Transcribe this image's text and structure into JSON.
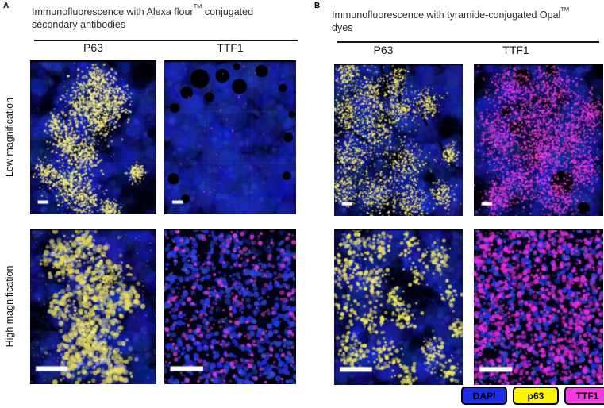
{
  "panels": {
    "A": {
      "label": "A",
      "title": {
        "pre": "Immunofluorescence with Alexa flour",
        "tm": "TM",
        "post": " conjugated",
        "line2": "secondary antibodies"
      },
      "columns": [
        "P63",
        "TTF1"
      ]
    },
    "B": {
      "label": "B",
      "title": {
        "pre": "Immunofluorescence with tyramide-conjugated Opal",
        "tm": "TM",
        "post": "",
        "line2": "dyes"
      },
      "columns": [
        "P63",
        "TTF1"
      ]
    }
  },
  "row_labels": [
    "Low magnification",
    "High magnification"
  ],
  "legend": {
    "items": [
      {
        "label": "DAPI",
        "color": "#1b2de8"
      },
      {
        "label": "p63",
        "color": "#fdf502"
      },
      {
        "label": "TTF1",
        "color": "#f63ae3"
      }
    ]
  },
  "stain_colors": {
    "dapi": "#1b2de8",
    "p63": "#fdf502",
    "ttf1": "#f63ae3"
  },
  "micrographs": {
    "a_low_p63": {
      "panel": "A",
      "magnification": "Low magnification",
      "marker": "P63",
      "bg": "mottle",
      "blueCount": 520,
      "darkPatches": [
        [
          0.9,
          0.08,
          0.14
        ],
        [
          0.86,
          0.9,
          0.2
        ],
        [
          0.6,
          0.47,
          0.1
        ],
        [
          0.12,
          0.3,
          0.07
        ],
        [
          0.98,
          0.45,
          0.08
        ]
      ],
      "layers": [
        {
          "color": "#f2ea7e",
          "count": 2400,
          "size": 1.4,
          "alpha": 0.95,
          "clusters": [
            [
              0.52,
              0.17,
              0.12
            ],
            [
              0.66,
              0.27,
              0.11
            ],
            [
              0.4,
              0.3,
              0.11
            ],
            [
              0.55,
              0.38,
              0.1
            ],
            [
              0.3,
              0.53,
              0.09
            ],
            [
              0.44,
              0.63,
              0.09
            ],
            [
              0.28,
              0.78,
              0.11
            ],
            [
              0.42,
              0.9,
              0.11
            ],
            [
              0.12,
              0.73,
              0.06
            ],
            [
              0.84,
              0.73,
              0.05
            ],
            [
              0.63,
              0.96,
              0.06
            ],
            [
              0.2,
              0.42,
              0.06
            ]
          ]
        },
        {
          "color": "#ffffff",
          "count": 240,
          "size": 1.0,
          "alpha": 0.5,
          "clusters": [
            [
              0.5,
              0.2,
              0.15
            ],
            [
              0.35,
              0.6,
              0.15
            ],
            [
              0.3,
              0.85,
              0.12
            ]
          ]
        }
      ],
      "grid": 3,
      "scalebar": {
        "x": 0.06,
        "y": 0.91,
        "len": 0.082,
        "th": 4
      }
    },
    "a_low_ttf1": {
      "panel": "A",
      "magnification": "Low magnification",
      "marker": "TTF1",
      "bg": "mottle",
      "blueCount": 680,
      "holes": [
        [
          0.27,
          0.12,
          0.075
        ],
        [
          0.44,
          0.1,
          0.055
        ],
        [
          0.57,
          0.17,
          0.06
        ],
        [
          0.17,
          0.21,
          0.05
        ],
        [
          0.34,
          0.24,
          0.04
        ],
        [
          0.08,
          0.31,
          0.04
        ],
        [
          0.74,
          0.07,
          0.05
        ],
        [
          0.9,
          0.18,
          0.035
        ],
        [
          0.94,
          0.5,
          0.04
        ],
        [
          0.07,
          0.77,
          0.045
        ],
        [
          0.16,
          0.9,
          0.035
        ],
        [
          0.93,
          0.75,
          0.035
        ],
        [
          0.55,
          0.04,
          0.03
        ],
        [
          0.97,
          0.35,
          0.03
        ]
      ],
      "layers": [
        {
          "color": "#f23ae2",
          "count": 28,
          "size": 1.1,
          "alpha": 0.8,
          "clusters": [
            [
              0.5,
              0.25,
              0.3
            ],
            [
              0.4,
              0.8,
              0.25
            ]
          ]
        }
      ],
      "grid": 3,
      "scalebar": {
        "x": 0.06,
        "y": 0.91,
        "len": 0.082,
        "th": 4
      }
    },
    "a_high_p63": {
      "panel": "A",
      "magnification": "High magnification",
      "marker": "P63",
      "bg": "mottle",
      "blueCount": 430,
      "darkPatches": [
        [
          0.04,
          0.6,
          0.1
        ],
        [
          0.62,
          0.35,
          0.07
        ],
        [
          0.1,
          0.1,
          0.06
        ]
      ],
      "layers": [
        {
          "color": "#cdd2f0",
          "count": 300,
          "size": 3.0,
          "alpha": 0.55,
          "clusters": [
            [
              0.42,
              0.15,
              0.14
            ],
            [
              0.22,
              0.2,
              0.1
            ],
            [
              0.62,
              0.3,
              0.12
            ],
            [
              0.45,
              0.4,
              0.12
            ],
            [
              0.6,
              0.55,
              0.13
            ],
            [
              0.42,
              0.65,
              0.12
            ],
            [
              0.55,
              0.8,
              0.14
            ],
            [
              0.33,
              0.85,
              0.1
            ],
            [
              0.68,
              0.93,
              0.09
            ],
            [
              0.78,
              0.45,
              0.07
            ],
            [
              0.25,
              0.5,
              0.07
            ]
          ]
        },
        {
          "color": "#e9dd55",
          "count": 680,
          "size": 3.0,
          "alpha": 0.8,
          "clusters": [
            [
              0.42,
              0.15,
              0.14
            ],
            [
              0.22,
              0.2,
              0.1
            ],
            [
              0.62,
              0.3,
              0.12
            ],
            [
              0.45,
              0.4,
              0.12
            ],
            [
              0.6,
              0.55,
              0.13
            ],
            [
              0.42,
              0.65,
              0.12
            ],
            [
              0.55,
              0.8,
              0.14
            ],
            [
              0.33,
              0.85,
              0.1
            ],
            [
              0.68,
              0.93,
              0.09
            ],
            [
              0.78,
              0.45,
              0.07
            ],
            [
              0.25,
              0.5,
              0.07
            ]
          ]
        },
        {
          "color": "#fff8a0",
          "count": 260,
          "size": 1.6,
          "alpha": 0.7,
          "clusters": [
            [
              0.42,
              0.15,
              0.14
            ],
            [
              0.62,
              0.3,
              0.12
            ],
            [
              0.45,
              0.4,
              0.12
            ],
            [
              0.55,
              0.8,
              0.14
            ],
            [
              0.42,
              0.65,
              0.12
            ]
          ]
        },
        {
          "color": "#f2ea7e",
          "count": 180,
          "size": 0.9,
          "alpha": 0.45,
          "clusters": null
        }
      ],
      "grid": 3,
      "scalebar": {
        "x": 0.045,
        "y": 0.885,
        "len": 0.25,
        "th": 6
      }
    },
    "a_high_ttf1": {
      "panel": "A",
      "magnification": "High magnification",
      "marker": "TTF1",
      "bg": "nuclei",
      "blueCount": 760,
      "darkPatches": [
        [
          0.75,
          0.05,
          0.12
        ],
        [
          0.45,
          0.55,
          0.08
        ]
      ],
      "layers": [
        {
          "color": "#ee3fe0",
          "count": 240,
          "size": 2.6,
          "alpha": 0.85,
          "clusters": null
        },
        {
          "color": "#ff7df0",
          "count": 120,
          "size": 1.2,
          "alpha": 0.6,
          "clusters": null
        }
      ],
      "grid": 3,
      "scalebar": {
        "x": 0.045,
        "y": 0.885,
        "len": 0.25,
        "th": 6
      }
    },
    "b_low_p63": {
      "panel": "B",
      "magnification": "Low magnification",
      "marker": "P63",
      "bg": "mottle",
      "blueCount": 520,
      "darkPatches": [
        [
          0.5,
          0.04,
          0.07
        ],
        [
          0.92,
          0.42,
          0.1
        ],
        [
          0.42,
          0.96,
          0.09
        ],
        [
          0.75,
          0.75,
          0.06
        ],
        [
          0.03,
          0.45,
          0.05
        ]
      ],
      "crevices": [
        [
          0.36,
          0.0,
          0.42,
          0.22,
          4
        ],
        [
          0.55,
          0.02,
          0.5,
          0.28,
          3
        ],
        [
          0.63,
          0.25,
          0.72,
          0.4,
          3
        ],
        [
          0.1,
          0.42,
          0.26,
          0.52,
          4
        ],
        [
          0.82,
          0.52,
          0.92,
          0.68,
          3
        ]
      ],
      "layers": [
        {
          "color": "#f6ef68",
          "count": 2800,
          "size": 1.2,
          "alpha": 0.95,
          "clusters": [
            [
              0.1,
              0.07,
              0.08
            ],
            [
              0.28,
              0.2,
              0.11
            ],
            [
              0.1,
              0.33,
              0.09
            ],
            [
              0.33,
              0.44,
              0.13
            ],
            [
              0.14,
              0.6,
              0.11
            ],
            [
              0.08,
              0.83,
              0.09
            ],
            [
              0.33,
              0.86,
              0.12
            ],
            [
              0.55,
              0.66,
              0.12
            ],
            [
              0.6,
              0.92,
              0.1
            ],
            [
              0.72,
              0.27,
              0.08
            ],
            [
              0.52,
              0.3,
              0.08
            ],
            [
              0.85,
              0.86,
              0.07
            ],
            [
              0.9,
              0.6,
              0.05
            ],
            [
              0.48,
              0.13,
              0.07
            ]
          ]
        },
        {
          "color": "#ffffff",
          "count": 200,
          "size": 0.9,
          "alpha": 0.5,
          "clusters": [
            [
              0.3,
              0.3,
              0.2
            ],
            [
              0.3,
              0.75,
              0.2
            ]
          ]
        }
      ],
      "scalebar": {
        "x": 0.06,
        "y": 0.91,
        "len": 0.082,
        "th": 4
      }
    },
    "b_low_ttf1": {
      "panel": "B",
      "magnification": "Low magnification",
      "marker": "TTF1",
      "bg": "mottle",
      "blueCount": 400,
      "darkPatches": [
        [
          0.0,
          0.9,
          0.14
        ],
        [
          0.02,
          0.1,
          0.09
        ],
        [
          0.98,
          0.05,
          0.07
        ]
      ],
      "holes": [
        [
          0.38,
          0.09,
          0.07
        ],
        [
          0.6,
          0.05,
          0.05
        ],
        [
          0.33,
          0.42,
          0.06
        ],
        [
          0.47,
          0.62,
          0.05
        ],
        [
          0.68,
          0.78,
          0.09
        ],
        [
          0.25,
          0.32,
          0.04
        ],
        [
          0.56,
          0.27,
          0.04
        ],
        [
          0.85,
          0.95,
          0.05
        ]
      ],
      "layers": [
        {
          "color": "#f03ae0",
          "count": 3600,
          "size": 1.3,
          "alpha": 0.9,
          "clusters": [
            [
              0.3,
              0.18,
              0.16
            ],
            [
              0.62,
              0.18,
              0.14
            ],
            [
              0.2,
              0.48,
              0.14
            ],
            [
              0.5,
              0.4,
              0.16
            ],
            [
              0.76,
              0.48,
              0.13
            ],
            [
              0.35,
              0.75,
              0.16
            ],
            [
              0.65,
              0.87,
              0.13
            ],
            [
              0.9,
              0.32,
              0.09
            ],
            [
              0.18,
              0.88,
              0.09
            ],
            [
              0.55,
              0.6,
              0.12
            ],
            [
              0.85,
              0.7,
              0.1
            ]
          ]
        },
        {
          "color": "#ff9bf2",
          "count": 300,
          "size": 0.9,
          "alpha": 0.5,
          "clusters": [
            [
              0.5,
              0.5,
              0.35
            ]
          ]
        }
      ],
      "scalebar": {
        "x": 0.06,
        "y": 0.91,
        "len": 0.082,
        "th": 4
      }
    },
    "b_high_p63": {
      "panel": "B",
      "magnification": "High magnification",
      "marker": "P63",
      "bg": "mottle",
      "blueCount": 520,
      "darkPatches": [
        [
          0.5,
          0.33,
          0.09
        ],
        [
          0.62,
          0.42,
          0.12
        ],
        [
          0.42,
          0.3,
          0.06
        ],
        [
          0.68,
          0.7,
          0.09
        ],
        [
          0.75,
          0.42,
          0.07
        ]
      ],
      "layers": [
        {
          "color": "#f2eb60",
          "count": 820,
          "size": 2.3,
          "alpha": 0.9,
          "clusters": [
            [
              0.15,
              0.08,
              0.1
            ],
            [
              0.35,
              0.1,
              0.09
            ],
            [
              0.1,
              0.28,
              0.09
            ],
            [
              0.3,
              0.33,
              0.09
            ],
            [
              0.1,
              0.52,
              0.09
            ],
            [
              0.3,
              0.58,
              0.09
            ],
            [
              0.14,
              0.78,
              0.09
            ],
            [
              0.38,
              0.8,
              0.09
            ],
            [
              0.56,
              0.55,
              0.07
            ],
            [
              0.6,
              0.12,
              0.08
            ],
            [
              0.8,
              0.18,
              0.08
            ],
            [
              0.9,
              0.42,
              0.06
            ],
            [
              0.77,
              0.8,
              0.09
            ],
            [
              0.55,
              0.92,
              0.08
            ],
            [
              0.9,
              0.9,
              0.06
            ],
            [
              0.47,
              0.45,
              0.05
            ],
            [
              0.95,
              0.65,
              0.05
            ],
            [
              0.65,
              0.3,
              0.06
            ]
          ]
        },
        {
          "color": "#c9cfe8",
          "count": 200,
          "size": 2.0,
          "alpha": 0.4,
          "clusters": [
            [
              0.15,
              0.08,
              0.1
            ],
            [
              0.3,
              0.33,
              0.09
            ],
            [
              0.14,
              0.78,
              0.09
            ],
            [
              0.77,
              0.8,
              0.09
            ],
            [
              0.8,
              0.18,
              0.08
            ]
          ]
        }
      ],
      "scalebar": {
        "x": 0.045,
        "y": 0.885,
        "len": 0.25,
        "th": 6
      }
    },
    "b_high_ttf1": {
      "panel": "B",
      "magnification": "High magnification",
      "marker": "TTF1",
      "bg": "nuclei",
      "blueCount": 620,
      "darkPatches": [
        [
          0.1,
          0.02,
          0.05
        ]
      ],
      "layers": [
        {
          "color": "#f02ce2",
          "count": 880,
          "size": 2.7,
          "alpha": 0.9,
          "clusters": null
        },
        {
          "color": "#ff86ef",
          "count": 220,
          "size": 1.2,
          "alpha": 0.5,
          "clusters": null
        }
      ],
      "scalebar": {
        "x": 0.045,
        "y": 0.885,
        "len": 0.25,
        "th": 6
      }
    }
  }
}
